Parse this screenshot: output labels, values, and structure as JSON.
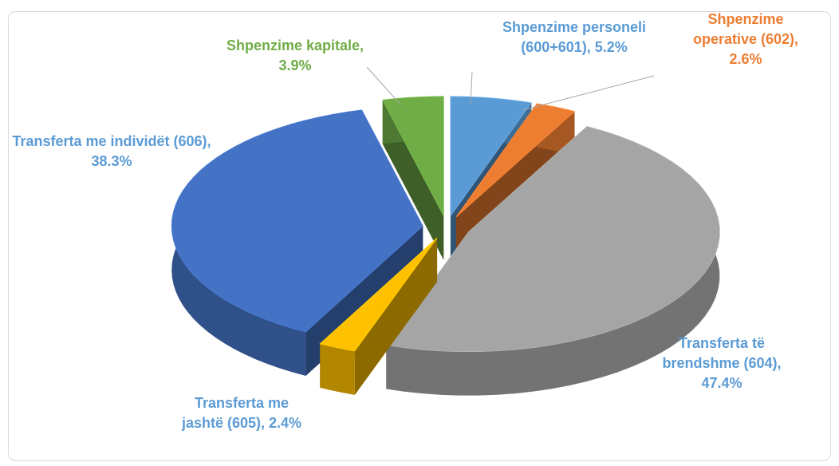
{
  "chart_data": {
    "type": "pie",
    "categories": [
      "Shpenzime personeli (600+601),",
      "Shpenzime operative (602),",
      "Transferta të brendshme (604),",
      "Transferta me jashtë (605),",
      "Transferta me individët (606),",
      "Shpenzime kapitale,"
    ],
    "values": [
      5.2,
      2.6,
      47.4,
      2.4,
      38.3,
      3.9
    ],
    "value_labels": [
      "5.2%",
      "2.6%",
      "47.4%",
      "2.4%",
      "38.3%",
      "3.9%"
    ],
    "colors": [
      "#5b9bd5",
      "#ed7d31",
      "#a5a5a5",
      "#ffc000",
      "#4472c4",
      "#70ad47"
    ],
    "label_colors": [
      "#5b9bd5",
      "#ed7d31",
      "#5b9bd5",
      "#5b9bd5",
      "#5b9bd5",
      "#70ad47"
    ],
    "exploded": true,
    "three_d": true
  }
}
